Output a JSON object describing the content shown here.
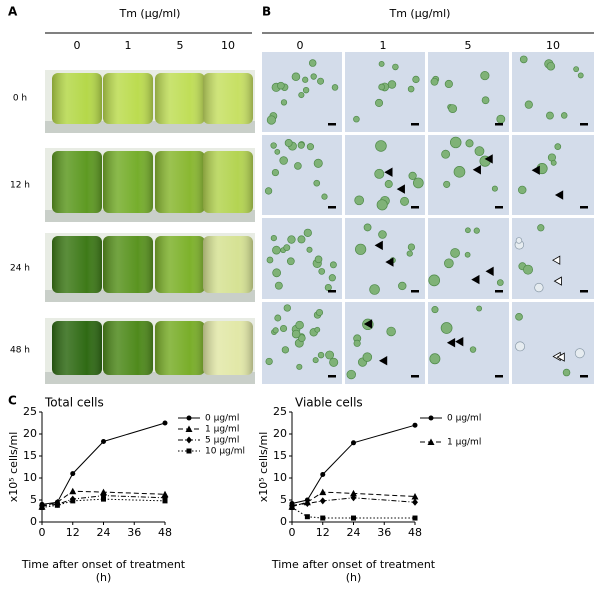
{
  "panels": {
    "a": {
      "label": "A",
      "header": "Tm (μg/ml)",
      "concentrations": [
        "0",
        "1",
        "5",
        "10"
      ],
      "times": [
        "0 h",
        "12 h",
        "24 h",
        "48 h"
      ]
    },
    "b": {
      "label": "B",
      "header": "Tm (μg/ml)",
      "concentrations": [
        "0",
        "1",
        "5",
        "10"
      ]
    },
    "c": {
      "label": "C"
    }
  },
  "chart_data": [
    {
      "type": "line",
      "title": "Total cells",
      "ylabel": "x10⁵ cells/ml",
      "xlabel": "Time after onset of treatment",
      "xunit": "(h)",
      "x": [
        0,
        6,
        12,
        24,
        48
      ],
      "xlim": [
        0,
        48
      ],
      "xticks": [
        0,
        12,
        24,
        36,
        48
      ],
      "ylim": [
        0,
        25
      ],
      "yticks": [
        0,
        5,
        10,
        15,
        20,
        25
      ],
      "series": [
        {
          "name": "0 μg/ml",
          "color": "#000000",
          "marker": "circle",
          "dash": "solid",
          "values": [
            4,
            4.5,
            11,
            18.3,
            22.5
          ]
        },
        {
          "name": "1 μg/ml",
          "color": "#000000",
          "marker": "triangle",
          "dash": "dash",
          "values": [
            3.5,
            4.5,
            7,
            6.8,
            6.3
          ]
        },
        {
          "name": "5 μg/ml",
          "color": "#000000",
          "marker": "diamond",
          "dash": "dashdot",
          "values": [
            3.8,
            4,
            5.2,
            6,
            5.5
          ]
        },
        {
          "name": "10 μg/ml",
          "color": "#000000",
          "marker": "square",
          "dash": "dot",
          "values": [
            3.3,
            3.8,
            4.8,
            5.2,
            4.8
          ]
        }
      ]
    },
    {
      "type": "line",
      "title": "Viable cells",
      "ylabel": "x10⁵ cells/ml",
      "xlabel": "Time after onset of treatment",
      "xunit": "(h)",
      "x": [
        0,
        6,
        12,
        24,
        48
      ],
      "xlim": [
        0,
        48
      ],
      "xticks": [
        0,
        12,
        24,
        36,
        48
      ],
      "ylim": [
        0,
        25
      ],
      "yticks": [
        0,
        5,
        10,
        15,
        20,
        25
      ],
      "series": [
        {
          "name": "0 μg/ml",
          "color": "#000000",
          "marker": "circle",
          "dash": "solid",
          "values": [
            4.2,
            5,
            10.8,
            18,
            22
          ]
        },
        {
          "name": "1 μg/ml",
          "color": "#000000",
          "marker": "triangle",
          "dash": "dash",
          "values": [
            3.5,
            4.5,
            6.8,
            6.5,
            5.8
          ]
        },
        {
          "color": "#000000",
          "marker": "diamond",
          "dash": "dashdot",
          "values": [
            3.8,
            4.2,
            4.8,
            5.5,
            4.5
          ]
        },
        {
          "color": "#000000",
          "marker": "square",
          "dash": "dot",
          "values": [
            3.3,
            1.2,
            0.9,
            0.9,
            0.9
          ]
        }
      ]
    }
  ]
}
